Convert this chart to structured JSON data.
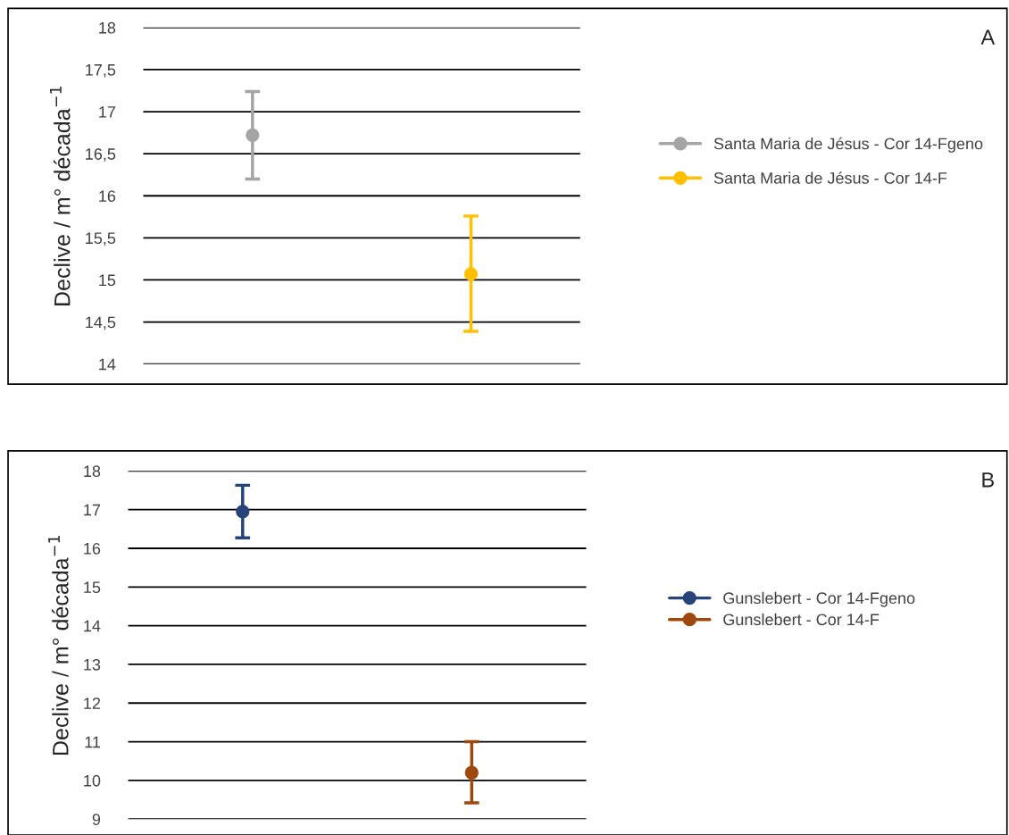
{
  "chart_data": [
    {
      "type": "line",
      "ylabel": "Declive / m° década$^{−1}$",
      "categories": [
        null,
        null
      ],
      "ylim": [
        14,
        18
      ],
      "yticks": [
        {
          "value": 14,
          "label": "14"
        },
        {
          "value": 14.5,
          "label": "14,5"
        },
        {
          "value": 15,
          "label": "15"
        },
        {
          "value": 15.5,
          "label": "15,5"
        },
        {
          "value": 16,
          "label": "16"
        },
        {
          "value": 16.5,
          "label": "16,5"
        },
        {
          "value": 17,
          "label": "17"
        },
        {
          "value": 17.5,
          "label": "17,5"
        },
        {
          "value": 18,
          "label": "18"
        }
      ],
      "grid": "y",
      "legend": "right",
      "marker": "circle",
      "line_style": "solid",
      "tick_labels": "y",
      "annotations": [
        "A"
      ],
      "series": [
        {
          "name": "Santa Maria de Jésus - Cor 14-Fgeno",
          "color": "#a5a5a5",
          "values": [
            16.72,
            null
          ],
          "errors": [
            [
              16.2,
              17.24
            ],
            null
          ]
        },
        {
          "name": "Santa Maria de Jésus - Cor 14-F",
          "color": "#ffc000",
          "values": [
            null,
            15.07
          ],
          "errors": [
            null,
            [
              14.39,
              15.76
            ]
          ]
        }
      ]
    },
    {
      "type": "line",
      "ylabel": "Declive / m° década$^{−1}$",
      "categories": [
        null,
        null
      ],
      "ylim": [
        9,
        18
      ],
      "yticks": [
        9,
        10,
        11,
        12,
        13,
        14,
        15,
        16,
        17,
        18
      ],
      "grid": "y",
      "legend": "right",
      "marker": "circle",
      "line_style": "solid",
      "tick_labels": "y",
      "annotations": [
        "B"
      ],
      "series": [
        {
          "name": "Gunslebert - Cor 14-Fgeno",
          "color": "#264478",
          "values": [
            16.95,
            null
          ],
          "errors": [
            [
              16.27,
              17.63
            ],
            null
          ]
        },
        {
          "name": "Gunslebert - Cor 14-F",
          "color": "#9e480e",
          "values": [
            null,
            10.2
          ],
          "errors": [
            null,
            [
              9.42,
              11.0
            ]
          ]
        }
      ]
    }
  ]
}
